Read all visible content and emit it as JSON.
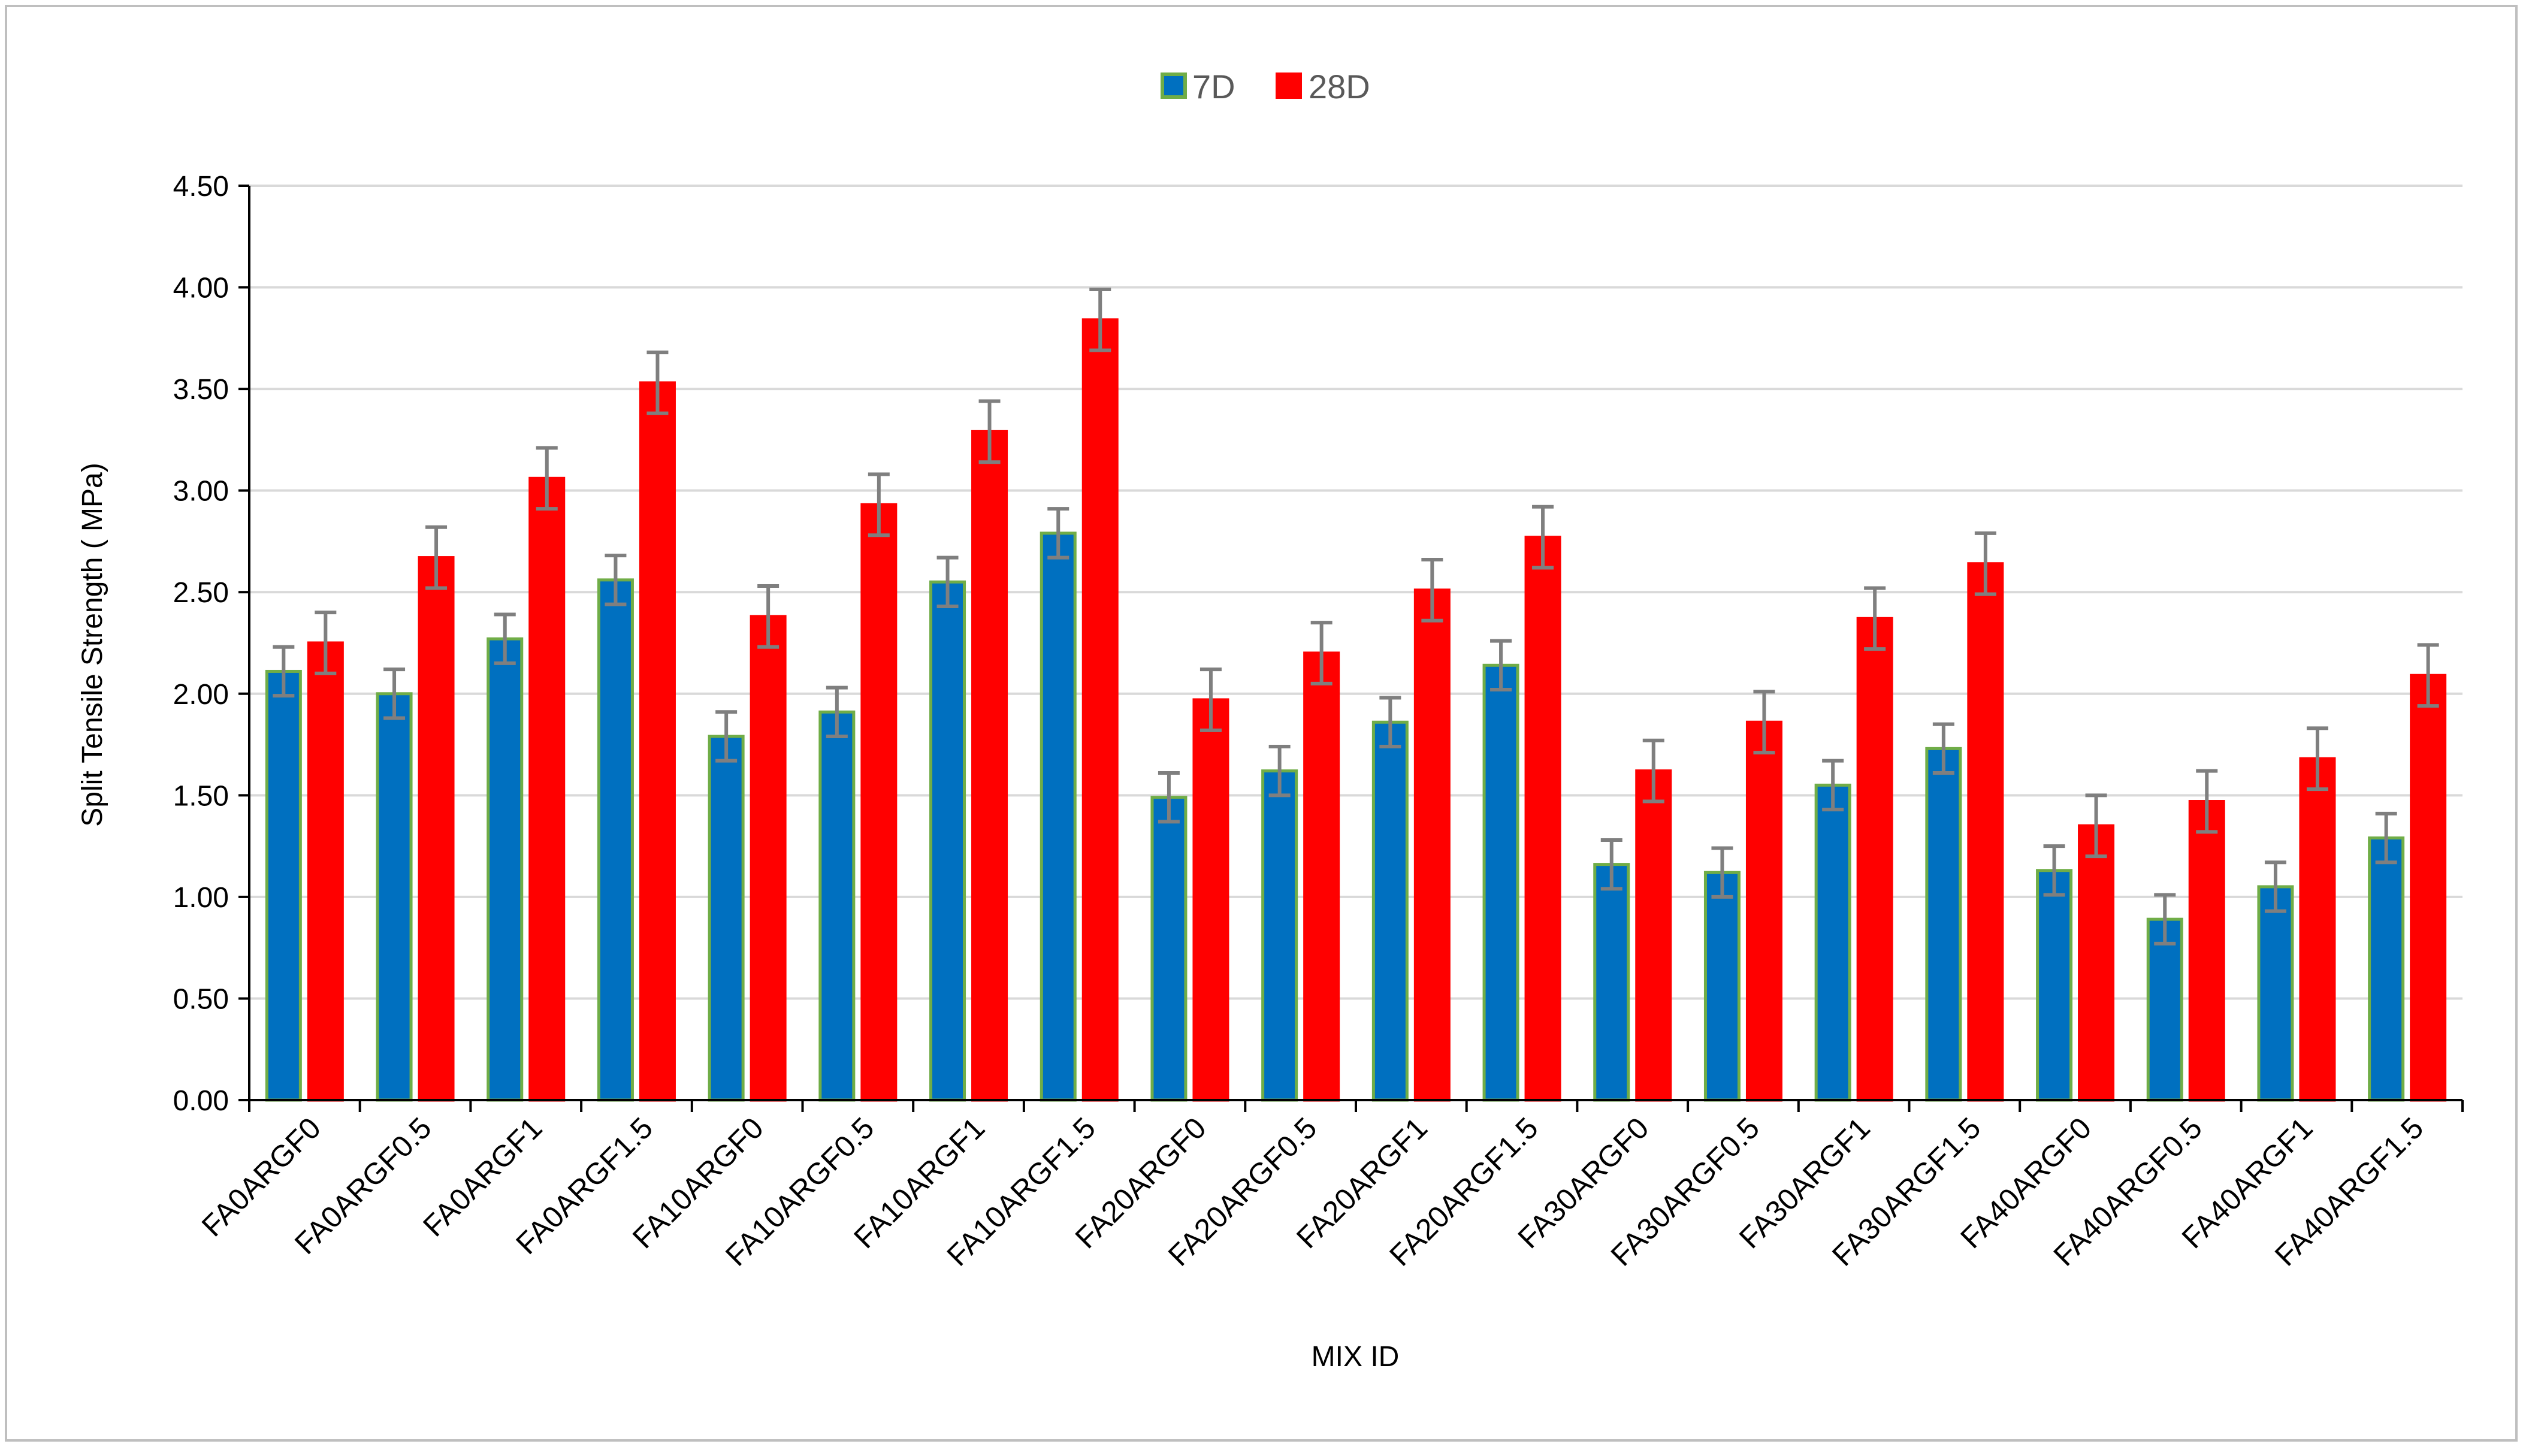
{
  "chart_data": {
    "type": "bar",
    "title": "",
    "xlabel": "MIX ID",
    "ylabel": "Split Tensile Strength ( MPa)",
    "ylim": [
      0,
      4.5
    ],
    "ytick_step": 0.5,
    "y_decimals": 2,
    "grid": true,
    "legend_position": "top-center",
    "error_bars": true,
    "categories": [
      "FA0ARGF0",
      "FA0ARGF0.5",
      "FA0ARGF1",
      "FA0ARGF1.5",
      "FA10ARGF0",
      "FA10ARGF0.5",
      "FA10ARGF1",
      "FA10ARGF1.5",
      "FA20ARGF0",
      "FA20ARGF0.5",
      "FA20ARGF1",
      "FA20ARGF1.5",
      "FA30ARGF0",
      "FA30ARGF0.5",
      "FA30ARGF1",
      "FA30ARGF1.5",
      "FA40ARGF0",
      "FA40ARGF0.5",
      "FA40ARGF1",
      "FA40ARGF1.5"
    ],
    "series": [
      {
        "name": "7D",
        "color": "#0070c0",
        "border_color": "#70ad47",
        "values": [
          2.11,
          2.0,
          2.27,
          2.56,
          1.79,
          1.91,
          2.55,
          2.79,
          1.49,
          1.62,
          1.86,
          2.14,
          1.16,
          1.12,
          1.55,
          1.73,
          1.13,
          0.89,
          1.05,
          1.29
        ],
        "error": [
          0.12,
          0.12,
          0.12,
          0.12,
          0.12,
          0.12,
          0.12,
          0.12,
          0.12,
          0.12,
          0.12,
          0.12,
          0.12,
          0.12,
          0.12,
          0.12,
          0.12,
          0.12,
          0.12,
          0.12
        ]
      },
      {
        "name": "28D",
        "color": "#ff0000",
        "border_color": "#ff0000",
        "values": [
          2.25,
          2.67,
          3.06,
          3.53,
          2.38,
          2.93,
          3.29,
          3.84,
          1.97,
          2.2,
          2.51,
          2.77,
          1.62,
          1.86,
          2.37,
          2.64,
          1.35,
          1.47,
          1.68,
          2.09
        ],
        "error": [
          0.15,
          0.15,
          0.15,
          0.15,
          0.15,
          0.15,
          0.15,
          0.15,
          0.15,
          0.15,
          0.15,
          0.15,
          0.15,
          0.15,
          0.15,
          0.15,
          0.15,
          0.15,
          0.15,
          0.15
        ]
      }
    ],
    "colors": {
      "gridline": "#d9d9d9",
      "axis": "#000000",
      "error_bar": "#7f7f7f"
    }
  }
}
